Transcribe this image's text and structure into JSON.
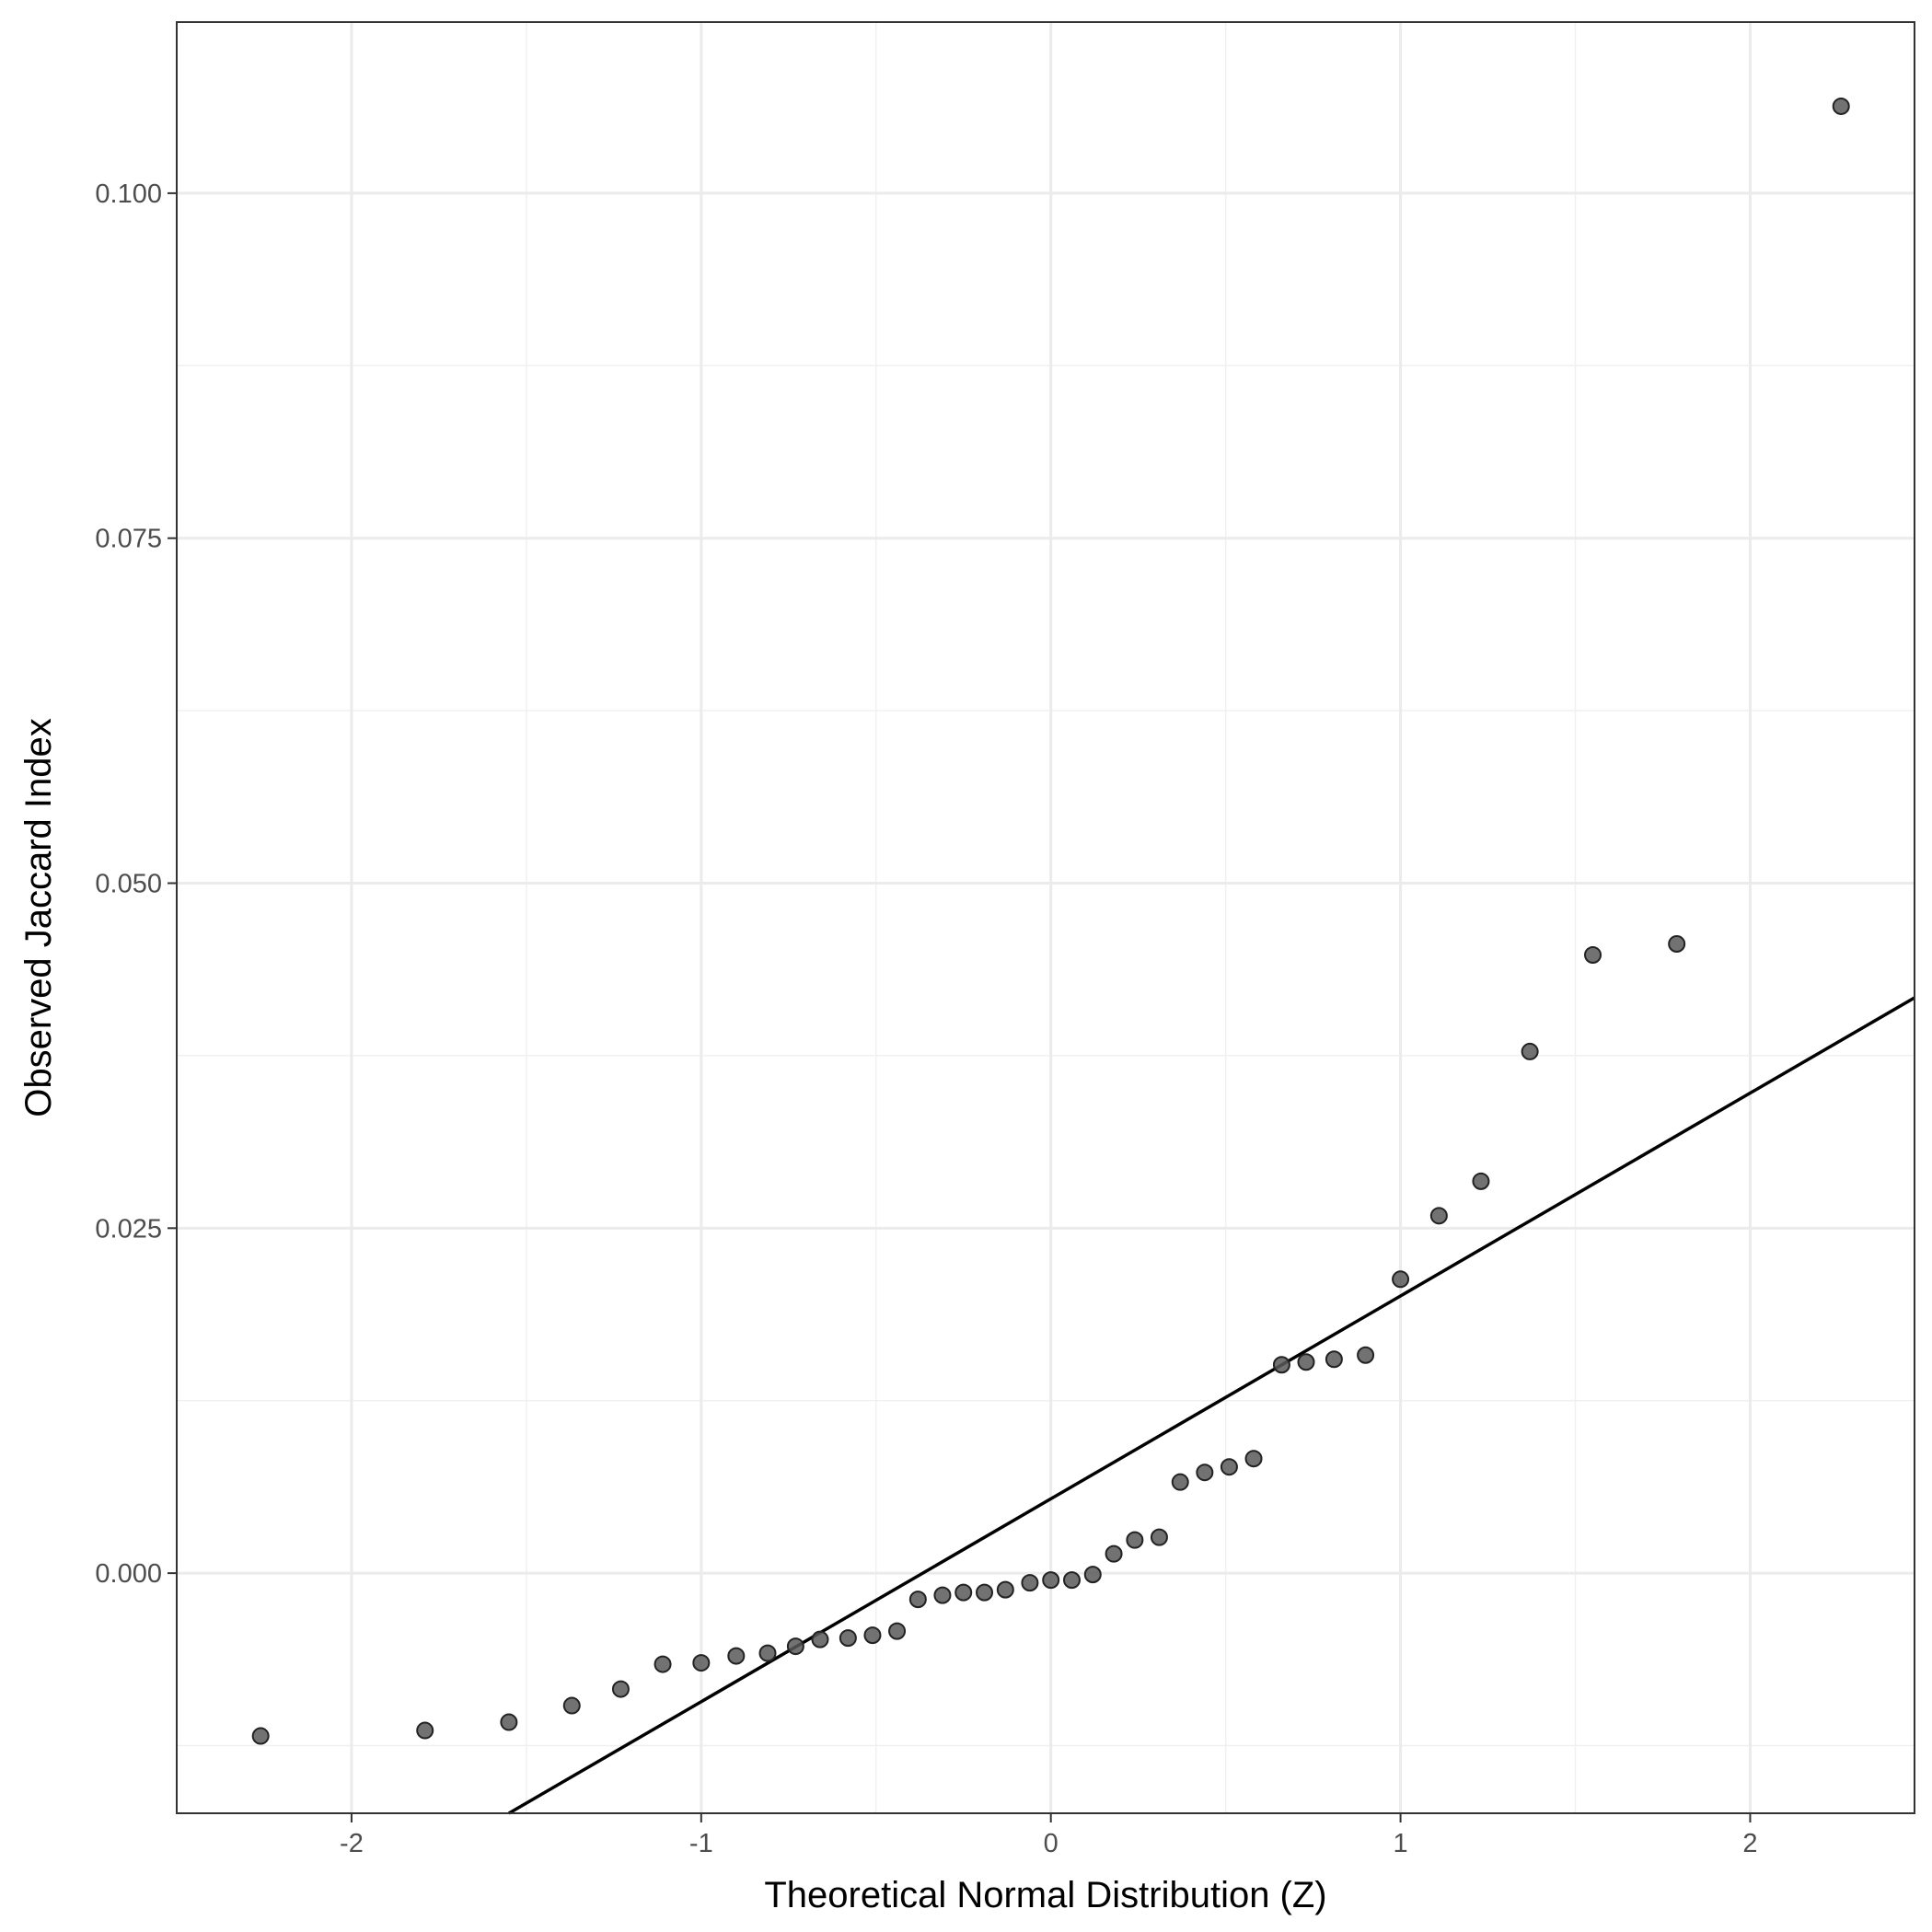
{
  "chart_data": {
    "type": "scatter",
    "title": "",
    "xlabel": "Theoretical Normal Distribution (Z)",
    "ylabel": "Observed Jaccard Index",
    "xlim": [
      -2.5,
      2.47
    ],
    "ylim": [
      -0.0174,
      0.1124
    ],
    "x_ticks": [
      -2,
      -1,
      0,
      1,
      2
    ],
    "x_tick_labels": [
      "-2",
      "-1",
      "0",
      "1",
      "2"
    ],
    "y_ticks": [
      0.0,
      0.025,
      0.05,
      0.075,
      0.1
    ],
    "y_tick_labels": [
      "0.000",
      "0.025",
      "0.050",
      "0.075",
      "0.100"
    ],
    "grid": true,
    "legend": "none",
    "point_color": "#595959",
    "line_color": "#000000",
    "reference_line": {
      "x": [
        -1.55,
        2.47
      ],
      "y": [
        -0.0174,
        0.0417
      ]
    },
    "points": {
      "x": [
        -2.26,
        -1.79,
        -1.55,
        -1.37,
        -1.23,
        -1.11,
        -1.0,
        -0.9,
        -0.81,
        -0.73,
        -0.66,
        -0.58,
        -0.51,
        -0.44,
        -0.38,
        -0.31,
        -0.25,
        -0.19,
        -0.13,
        -0.06,
        0.0,
        0.06,
        0.12,
        0.18,
        0.24,
        0.31,
        0.37,
        0.44,
        0.51,
        0.58,
        0.66,
        0.73,
        0.81,
        0.9,
        1.0,
        1.11,
        1.23,
        1.37,
        1.55,
        1.79,
        2.26
      ],
      "y": [
        -0.0118,
        -0.0114,
        -0.0108,
        -0.0096,
        -0.0084,
        -0.0066,
        -0.0065,
        -0.006,
        -0.0058,
        -0.0053,
        -0.0048,
        -0.0047,
        -0.0045,
        -0.0042,
        -0.0019,
        -0.0016,
        -0.0014,
        -0.0014,
        -0.0012,
        -0.0007,
        -0.0005,
        -0.0005,
        -0.0001,
        0.0014,
        0.0024,
        0.0026,
        0.0066,
        0.0073,
        0.0077,
        0.0083,
        0.0151,
        0.0153,
        0.0155,
        0.0158,
        0.0213,
        0.0259,
        0.0284,
        0.0378,
        0.0448,
        0.0456,
        0.1063
      ]
    }
  }
}
